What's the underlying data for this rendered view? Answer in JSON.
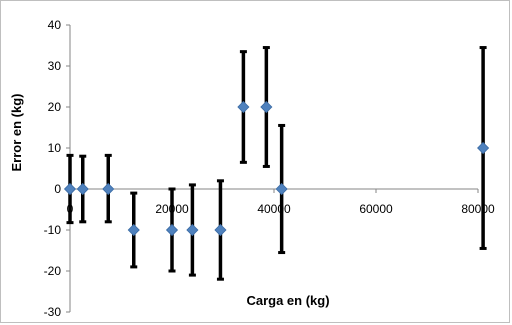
{
  "chart_data": {
    "type": "scatter",
    "xlabel": "Carga en (kg)",
    "ylabel": "Error en (kg)",
    "xlim": [
      0,
      80000
    ],
    "ylim": [
      -30,
      40
    ],
    "x_ticks": [
      0,
      20000,
      40000,
      60000,
      80000
    ],
    "y_ticks": [
      -30,
      -20,
      -10,
      0,
      10,
      20,
      30,
      40
    ],
    "grid": false,
    "legend": "none",
    "marker": "diamond",
    "marker_color": "#4f81bd",
    "errorbar_color": "#000000",
    "series": [
      {
        "points": [
          {
            "x": 0,
            "y": 0,
            "low": -8.2,
            "high": 8.2
          },
          {
            "x": 2500,
            "y": 0,
            "low": -8,
            "high": 8
          },
          {
            "x": 7500,
            "y": 0,
            "low": -8,
            "high": 8.2
          },
          {
            "x": 12500,
            "y": -10,
            "low": -19,
            "high": -1
          },
          {
            "x": 20000,
            "y": -10,
            "low": -20,
            "high": 0
          },
          {
            "x": 24000,
            "y": -10,
            "low": -21,
            "high": 1
          },
          {
            "x": 29500,
            "y": -10,
            "low": -22,
            "high": 2
          },
          {
            "x": 34000,
            "y": 20,
            "low": 6.5,
            "high": 33.5
          },
          {
            "x": 38500,
            "y": 20,
            "low": 5.5,
            "high": 34.5
          },
          {
            "x": 41500,
            "y": 0,
            "low": -15.5,
            "high": 15.5
          },
          {
            "x": 81000,
            "y": 10,
            "low": -14.5,
            "high": 34.5
          }
        ]
      }
    ]
  }
}
